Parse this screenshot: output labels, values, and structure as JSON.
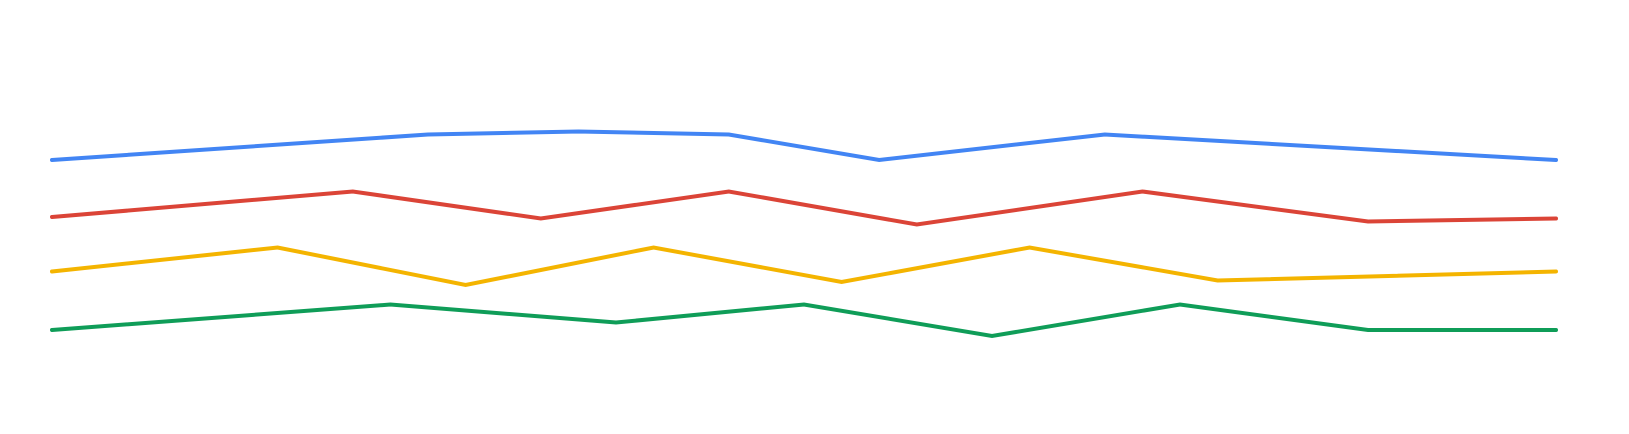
{
  "chart_data": {
    "type": "line",
    "title": "",
    "xlabel": "",
    "ylabel": "",
    "grid": false,
    "legend": "none",
    "series": [
      {
        "color": "#4285F4",
        "points": [
          [
            0,
            1.8
          ],
          [
            2.5,
            3.5
          ],
          [
            3.5,
            3.7
          ],
          [
            4.5,
            3.5
          ],
          [
            5.5,
            1.8
          ],
          [
            7,
            3.5
          ],
          [
            10,
            1.8
          ]
        ]
      },
      {
        "color": "#DB4437",
        "points": [
          [
            0,
            1.8
          ],
          [
            2,
            3.5
          ],
          [
            3.25,
            1.7
          ],
          [
            4.5,
            3.5
          ],
          [
            5.75,
            1.3
          ],
          [
            7.25,
            3.5
          ],
          [
            8.75,
            1.5
          ],
          [
            10,
            1.7
          ]
        ]
      },
      {
        "color": "#F4B400",
        "points": [
          [
            0,
            1.9
          ],
          [
            1.5,
            3.5
          ],
          [
            2.75,
            1.0
          ],
          [
            4,
            3.5
          ],
          [
            5.25,
            1.2
          ],
          [
            6.5,
            3.5
          ],
          [
            7.75,
            1.3
          ],
          [
            10,
            1.9
          ]
        ]
      },
      {
        "color": "#0F9D58",
        "points": [
          [
            0,
            1.8
          ],
          [
            2.25,
            3.5
          ],
          [
            3.75,
            2.3
          ],
          [
            5,
            3.5
          ],
          [
            6.25,
            1.4
          ],
          [
            7.5,
            3.5
          ],
          [
            8.75,
            1.8
          ],
          [
            10,
            1.8
          ]
        ]
      }
    ]
  }
}
